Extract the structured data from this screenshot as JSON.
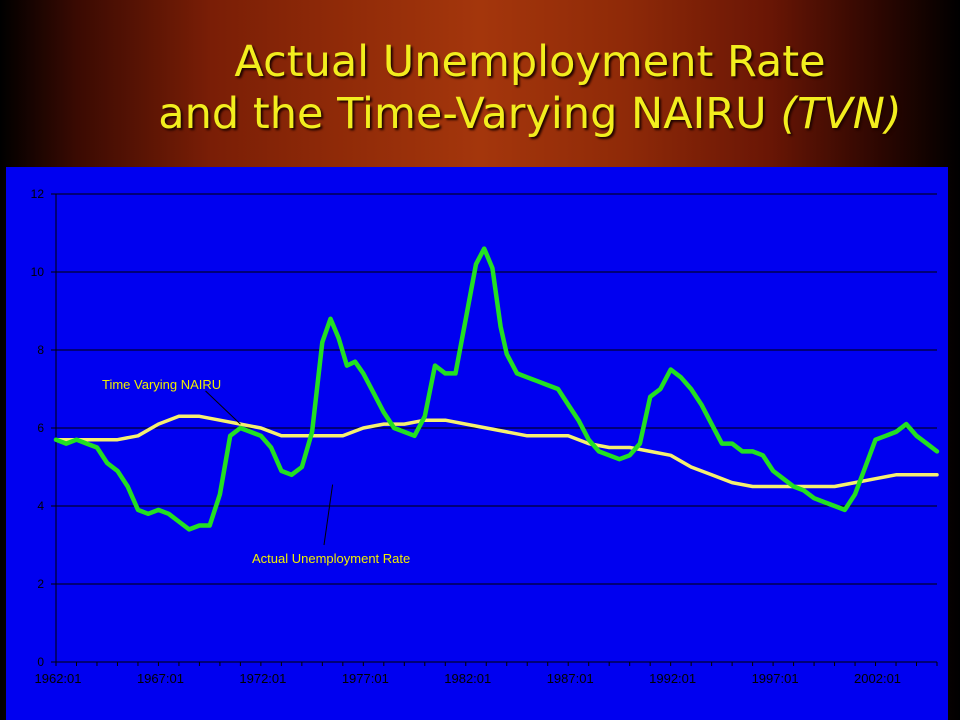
{
  "title": {
    "line1": "Actual Unemployment Rate",
    "line2_prefix": "and the Time-Varying NAIRU ",
    "line2_italic": "(TVN)"
  },
  "colors": {
    "background_gradient": [
      "#000000",
      "#a4360c"
    ],
    "title": "#f2ee1e",
    "plot_background": "#0000f0",
    "actual_series": "#22e022",
    "nairu_series": "#f6f070",
    "annotation_text": "#f0f000"
  },
  "chart_data": {
    "type": "line",
    "title": "",
    "xlabel": "",
    "ylabel": "",
    "ylim": [
      0,
      12
    ],
    "yticks": [
      0,
      2,
      4,
      6,
      8,
      10,
      12
    ],
    "xlim": [
      1962.0,
      2005.0
    ],
    "xticks": [
      "1962:01",
      "1967:01",
      "1972:01",
      "1977:01",
      "1982:01",
      "1987:01",
      "1992:01",
      "1997:01",
      "2002:01"
    ],
    "grid": "horizontal",
    "legend": "none",
    "annotations": [
      {
        "text": "Time Varying NAIRU",
        "series": "nairu",
        "x": 1971.0,
        "y": 6.1
      },
      {
        "text": "Actual Unemployment Rate",
        "series": "actual",
        "x": 1975.5,
        "y": 4.55
      }
    ],
    "series": [
      {
        "key": "actual",
        "x": [
          1962.0,
          1962.5,
          1963.0,
          1963.5,
          1964.0,
          1964.5,
          1965.0,
          1965.5,
          1966.0,
          1966.5,
          1967.0,
          1967.5,
          1968.0,
          1968.5,
          1969.0,
          1969.5,
          1970.0,
          1970.5,
          1971.0,
          1971.5,
          1972.0,
          1972.5,
          1973.0,
          1973.5,
          1974.0,
          1974.5,
          1975.0,
          1975.4,
          1975.8,
          1976.2,
          1976.6,
          1977.0,
          1977.5,
          1978.0,
          1978.5,
          1979.0,
          1979.5,
          1980.0,
          1980.5,
          1981.0,
          1981.5,
          1982.0,
          1982.5,
          1982.9,
          1983.3,
          1983.7,
          1984.0,
          1984.5,
          1985.0,
          1985.5,
          1986.0,
          1986.5,
          1987.0,
          1987.5,
          1988.0,
          1988.5,
          1989.0,
          1989.5,
          1990.0,
          1990.5,
          1991.0,
          1991.5,
          1992.0,
          1992.5,
          1993.0,
          1993.5,
          1994.0,
          1994.5,
          1995.0,
          1995.5,
          1996.0,
          1996.5,
          1997.0,
          1997.5,
          1998.0,
          1998.5,
          1999.0,
          1999.5,
          2000.0,
          2000.5,
          2001.0,
          2001.5,
          2002.0,
          2002.5,
          2003.0,
          2003.5,
          2004.0,
          2004.5,
          2005.0
        ],
        "y": [
          5.7,
          5.6,
          5.7,
          5.6,
          5.5,
          5.1,
          4.9,
          4.5,
          3.9,
          3.8,
          3.9,
          3.8,
          3.6,
          3.4,
          3.5,
          3.5,
          4.3,
          5.8,
          6.0,
          5.9,
          5.8,
          5.5,
          4.9,
          4.8,
          5.0,
          5.9,
          8.2,
          8.8,
          8.3,
          7.6,
          7.7,
          7.4,
          6.9,
          6.4,
          6.0,
          5.9,
          5.8,
          6.3,
          7.6,
          7.4,
          7.4,
          8.8,
          10.2,
          10.6,
          10.1,
          8.6,
          7.9,
          7.4,
          7.3,
          7.2,
          7.1,
          7.0,
          6.6,
          6.2,
          5.7,
          5.4,
          5.3,
          5.2,
          5.3,
          5.6,
          6.8,
          7.0,
          7.5,
          7.3,
          7.0,
          6.6,
          6.1,
          5.6,
          5.6,
          5.4,
          5.4,
          5.3,
          4.9,
          4.7,
          4.5,
          4.4,
          4.2,
          4.1,
          4.0,
          3.9,
          4.3,
          5.0,
          5.7,
          5.8,
          5.9,
          6.1,
          5.8,
          5.6,
          5.4
        ]
      },
      {
        "key": "nairu",
        "x": [
          1962.0,
          1963.0,
          1964.0,
          1965.0,
          1966.0,
          1967.0,
          1968.0,
          1969.0,
          1970.0,
          1971.0,
          1972.0,
          1973.0,
          1974.0,
          1975.0,
          1976.0,
          1977.0,
          1978.0,
          1979.0,
          1980.0,
          1981.0,
          1982.0,
          1983.0,
          1984.0,
          1985.0,
          1986.0,
          1987.0,
          1988.0,
          1989.0,
          1990.0,
          1991.0,
          1992.0,
          1993.0,
          1994.0,
          1995.0,
          1996.0,
          1997.0,
          1998.0,
          1999.0,
          2000.0,
          2001.0,
          2002.0,
          2003.0,
          2004.0,
          2005.0
        ],
        "y": [
          5.7,
          5.7,
          5.7,
          5.7,
          5.8,
          6.1,
          6.3,
          6.3,
          6.2,
          6.1,
          6.0,
          5.8,
          5.8,
          5.8,
          5.8,
          6.0,
          6.1,
          6.1,
          6.2,
          6.2,
          6.1,
          6.0,
          5.9,
          5.8,
          5.8,
          5.8,
          5.6,
          5.5,
          5.5,
          5.4,
          5.3,
          5.0,
          4.8,
          4.6,
          4.5,
          4.5,
          4.5,
          4.5,
          4.5,
          4.6,
          4.7,
          4.8,
          4.8,
          4.8
        ]
      }
    ]
  }
}
